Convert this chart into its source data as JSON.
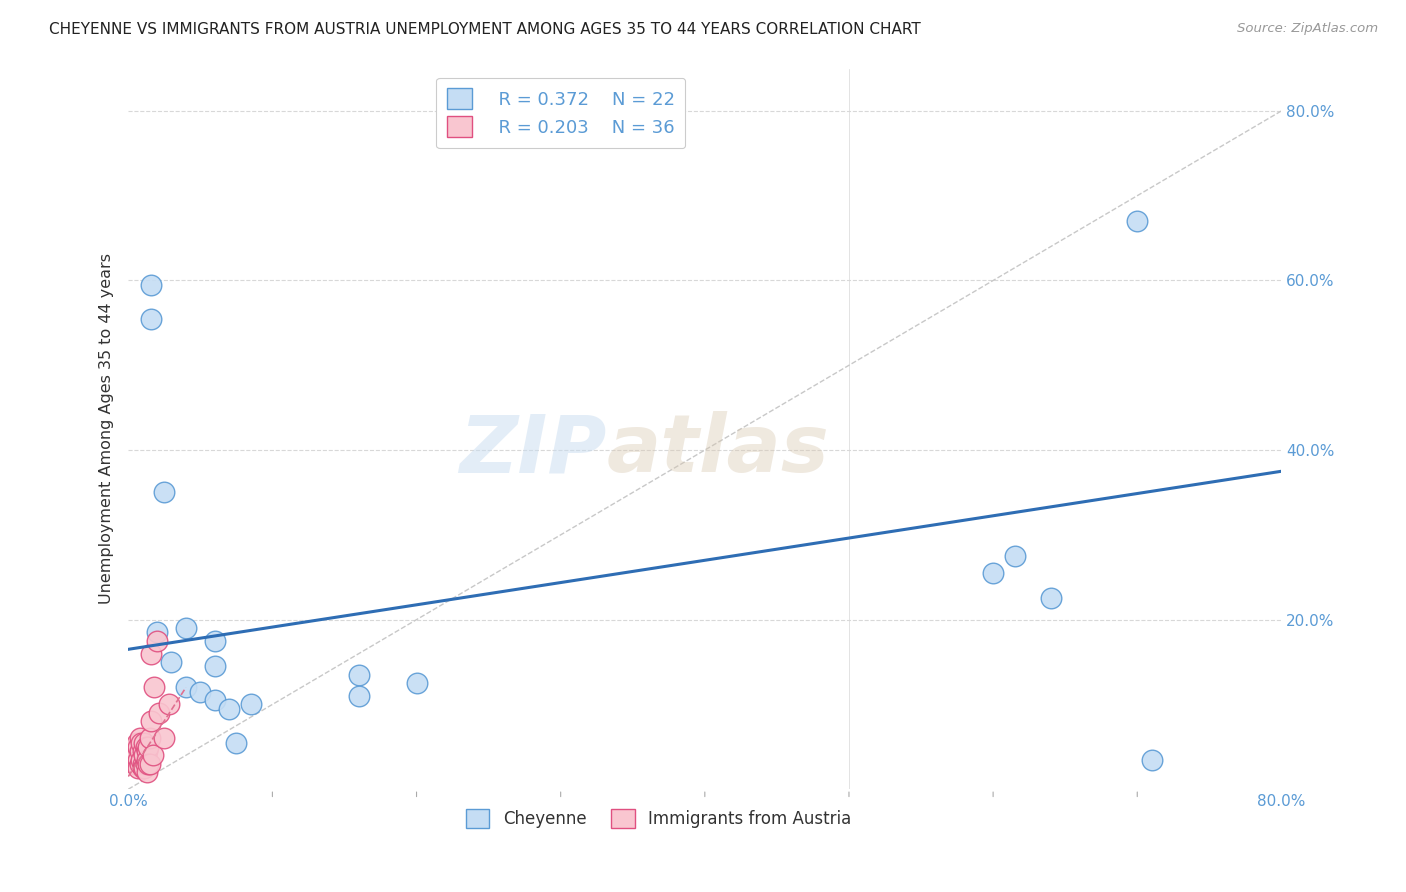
{
  "title": "CHEYENNE VS IMMIGRANTS FROM AUSTRIA UNEMPLOYMENT AMONG AGES 35 TO 44 YEARS CORRELATION CHART",
  "source": "Source: ZipAtlas.com",
  "ylabel": "Unemployment Among Ages 35 to 44 years",
  "xlim": [
    0.0,
    0.8
  ],
  "ylim": [
    0.0,
    0.85
  ],
  "xticks": [
    0.0,
    0.1,
    0.2,
    0.3,
    0.4,
    0.5,
    0.6,
    0.7,
    0.8
  ],
  "xticklabels": [
    "0.0%",
    "",
    "",
    "",
    "",
    "",
    "",
    "",
    "80.0%"
  ],
  "yticks": [
    0.0,
    0.2,
    0.4,
    0.6,
    0.8
  ],
  "yticklabels": [
    "",
    "20.0%",
    "40.0%",
    "60.0%",
    "80.0%"
  ],
  "cheyenne_color": "#c5ddf4",
  "cheyenne_edge": "#5b9bd5",
  "austria_color": "#f9c6d0",
  "austria_edge": "#e05080",
  "trendline_cheyenne_color": "#2e6db4",
  "trendline_austria_color": "#e07090",
  "diagonal_color": "#c8c8c8",
  "grid_color": "#d8d8d8",
  "watermark_zip": "ZIP",
  "watermark_atlas": "atlas",
  "legend_r_cheyenne": "R = 0.372",
  "legend_n_cheyenne": "N = 22",
  "legend_r_austria": "R = 0.203",
  "legend_n_austria": "N = 36",
  "legend_label_cheyenne": "Cheyenne",
  "legend_label_austria": "Immigrants from Austria",
  "cheyenne_x": [
    0.016,
    0.016,
    0.025,
    0.04,
    0.06,
    0.06,
    0.085,
    0.16,
    0.16,
    0.2,
    0.6,
    0.615,
    0.64,
    0.7,
    0.71,
    0.02,
    0.03,
    0.04,
    0.05,
    0.06,
    0.07,
    0.075
  ],
  "cheyenne_y": [
    0.595,
    0.555,
    0.35,
    0.19,
    0.175,
    0.145,
    0.1,
    0.135,
    0.11,
    0.125,
    0.255,
    0.275,
    0.225,
    0.67,
    0.035,
    0.185,
    0.15,
    0.12,
    0.115,
    0.105,
    0.095,
    0.055
  ],
  "austria_x": [
    0.004,
    0.005,
    0.005,
    0.006,
    0.006,
    0.007,
    0.007,
    0.007,
    0.008,
    0.008,
    0.008,
    0.009,
    0.009,
    0.01,
    0.01,
    0.01,
    0.011,
    0.011,
    0.011,
    0.012,
    0.012,
    0.013,
    0.013,
    0.013,
    0.014,
    0.014,
    0.015,
    0.015,
    0.016,
    0.016,
    0.017,
    0.018,
    0.02,
    0.021,
    0.025,
    0.028
  ],
  "austria_y": [
    0.035,
    0.04,
    0.03,
    0.055,
    0.04,
    0.05,
    0.035,
    0.025,
    0.06,
    0.045,
    0.03,
    0.055,
    0.035,
    0.045,
    0.03,
    0.025,
    0.055,
    0.04,
    0.025,
    0.05,
    0.03,
    0.045,
    0.035,
    0.02,
    0.05,
    0.03,
    0.06,
    0.03,
    0.16,
    0.08,
    0.04,
    0.12,
    0.175,
    0.09,
    0.06,
    0.1
  ],
  "trendline_cheyenne_x0": 0.0,
  "trendline_cheyenne_y0": 0.165,
  "trendline_cheyenne_x1": 0.8,
  "trendline_cheyenne_y1": 0.375,
  "trendline_austria_x0": 0.0,
  "trendline_austria_y0": 0.015,
  "trendline_austria_x1": 0.04,
  "trendline_austria_y1": 0.12
}
